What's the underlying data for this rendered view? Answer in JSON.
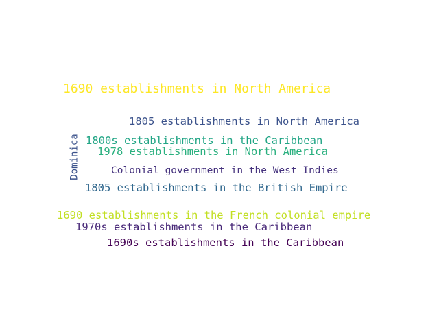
{
  "word_cloud": {
    "words": [
      {
        "text": "1690 establishments in North America",
        "color": "#fde725",
        "orientation": "horizontal"
      },
      {
        "text": "1805 establishments in North America",
        "color": "#3b528b",
        "orientation": "horizontal"
      },
      {
        "text": "Dominica",
        "color": "#3b528b",
        "orientation": "vertical"
      },
      {
        "text": "1800s establishments in the Caribbean",
        "color": "#21a585",
        "orientation": "horizontal"
      },
      {
        "text": "1978 establishments in North America",
        "color": "#2ab07f",
        "orientation": "horizontal"
      },
      {
        "text": "Colonial government in the West Indies",
        "color": "#46337e",
        "orientation": "horizontal"
      },
      {
        "text": "1805 establishments in the British Empire",
        "color": "#31688e",
        "orientation": "horizontal"
      },
      {
        "text": "1690 establishments in the French colonial empire",
        "color": "#c2df23",
        "orientation": "horizontal"
      },
      {
        "text": "1970s establishments in the Caribbean",
        "color": "#482878",
        "orientation": "horizontal"
      },
      {
        "text": "1690s establishments in the Caribbean",
        "color": "#440154",
        "orientation": "horizontal"
      }
    ]
  }
}
